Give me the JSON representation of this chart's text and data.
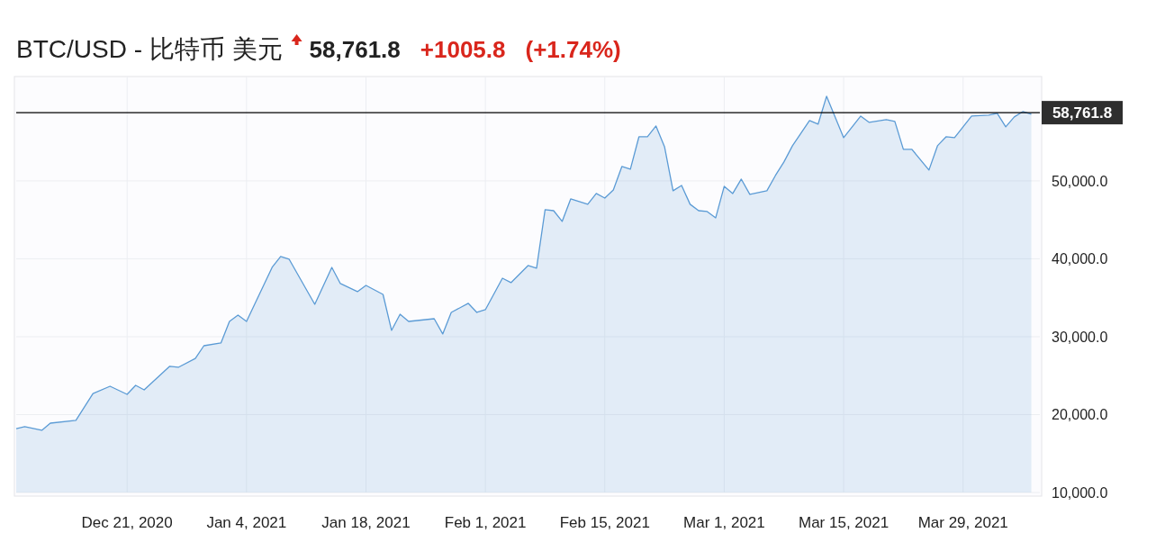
{
  "chart_data": {
    "type": "area",
    "title": "BTC/USD - 比特币 美元",
    "annotations": [
      "58,761.8",
      "+1005.8",
      "(+1.74%)"
    ],
    "x": [
      "2020-12-08",
      "2020-12-09",
      "2020-12-11",
      "2020-12-12",
      "2020-12-15",
      "2020-12-17",
      "2020-12-19",
      "2020-12-21",
      "2020-12-22",
      "2020-12-23",
      "2020-12-26",
      "2020-12-27",
      "2020-12-29",
      "2020-12-30",
      "2021-01-01",
      "2021-01-02",
      "2021-01-03",
      "2021-01-04",
      "2021-01-07",
      "2021-01-08",
      "2021-01-09",
      "2021-01-12",
      "2021-01-14",
      "2021-01-15",
      "2021-01-17",
      "2021-01-18",
      "2021-01-20",
      "2021-01-21",
      "2021-01-22",
      "2021-01-23",
      "2021-01-26",
      "2021-01-27",
      "2021-01-28",
      "2021-01-30",
      "2021-01-31",
      "2021-02-01",
      "2021-02-03",
      "2021-02-04",
      "2021-02-06",
      "2021-02-07",
      "2021-02-08",
      "2021-02-09",
      "2021-02-10",
      "2021-02-11",
      "2021-02-13",
      "2021-02-14",
      "2021-02-15",
      "2021-02-16",
      "2021-02-17",
      "2021-02-18",
      "2021-02-19",
      "2021-02-20",
      "2021-02-21",
      "2021-02-22",
      "2021-02-23",
      "2021-02-24",
      "2021-02-25",
      "2021-02-26",
      "2021-02-27",
      "2021-02-28",
      "2021-03-01",
      "2021-03-02",
      "2021-03-03",
      "2021-03-04",
      "2021-03-06",
      "2021-03-07",
      "2021-03-08",
      "2021-03-09",
      "2021-03-10",
      "2021-03-11",
      "2021-03-12",
      "2021-03-13",
      "2021-03-14",
      "2021-03-15",
      "2021-03-17",
      "2021-03-18",
      "2021-03-20",
      "2021-03-21",
      "2021-03-22",
      "2021-03-23",
      "2021-03-25",
      "2021-03-26",
      "2021-03-27",
      "2021-03-28",
      "2021-03-30",
      "2021-04-01",
      "2021-04-02",
      "2021-04-03",
      "2021-04-04",
      "2021-04-05",
      "2021-04-06"
    ],
    "series": [
      {
        "color": "#5b9bd5",
        "values": [
          18200,
          18440,
          17980,
          18900,
          19250,
          22700,
          23640,
          22600,
          23760,
          23180,
          26200,
          26070,
          27200,
          28840,
          29190,
          31960,
          32770,
          31960,
          38900,
          40290,
          39940,
          34160,
          38900,
          36820,
          35780,
          36590,
          35430,
          30810,
          32890,
          31960,
          32310,
          30350,
          33120,
          34280,
          33120,
          33470,
          37510,
          36940,
          39130,
          38790,
          46300,
          46180,
          44800,
          47690,
          47000,
          48380,
          47800,
          48840,
          51850,
          51500,
          55660,
          55660,
          57050,
          54390,
          48730,
          49420,
          47000,
          46180,
          46070,
          45260,
          49310,
          48380,
          50230,
          48270,
          48730,
          50690,
          52430,
          54510,
          56130,
          57750,
          57280,
          60870,
          58210,
          55550,
          58320,
          57510,
          57860,
          57630,
          54050,
          54050,
          51390,
          54510,
          55660,
          55550,
          58320,
          58440,
          58670,
          56940,
          58210,
          58900,
          58550
        ]
      }
    ],
    "xlim": [
      "2020-12-08",
      "2021-04-07"
    ],
    "xticks": [
      {
        "value": "2020-12-21",
        "label": "Dec 21, 2020"
      },
      {
        "value": "2021-01-04",
        "label": "Jan 4, 2021"
      },
      {
        "value": "2021-01-18",
        "label": "Jan 18, 2021"
      },
      {
        "value": "2021-02-01",
        "label": "Feb 1, 2021"
      },
      {
        "value": "2021-02-15",
        "label": "Feb 15, 2021"
      },
      {
        "value": "2021-03-01",
        "label": "Mar 1, 2021"
      },
      {
        "value": "2021-03-15",
        "label": "Mar 15, 2021"
      },
      {
        "value": "2021-03-29",
        "label": "Mar 29, 2021"
      }
    ],
    "ylim": [
      10000,
      63400
    ],
    "yticks": [
      {
        "value": 10000,
        "label": "10,000.0"
      },
      {
        "value": 20000,
        "label": "20,000.0"
      },
      {
        "value": 30000,
        "label": "30,000.0"
      },
      {
        "value": 40000,
        "label": "40,000.0"
      },
      {
        "value": 50000,
        "label": "50,000.0"
      }
    ],
    "ref_lines": [
      {
        "axis": "y",
        "value": 58761.8,
        "label": "58,761.8",
        "color": "#000000"
      }
    ],
    "grid": true
  }
}
